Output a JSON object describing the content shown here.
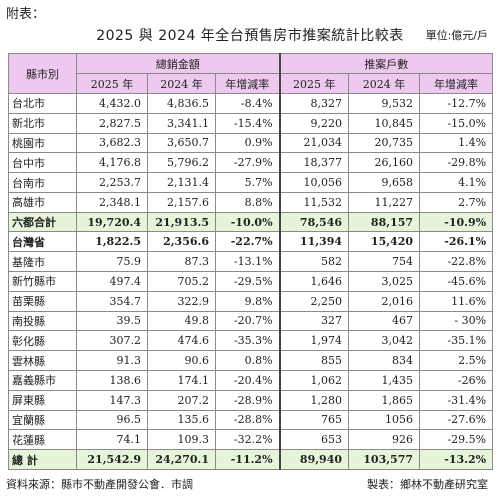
{
  "top_label": "附表：",
  "title": "2025 與 2024 年全台預售房市推案統計比較表",
  "unit": "單位:億元/戶",
  "headers": {
    "city": "縣市別",
    "sales_group": "總銷金額",
    "units_group": "推案戶數",
    "y2025": "2025 年",
    "y2024": "2024 年",
    "yoy": "年增減率"
  },
  "rows": [
    {
      "city": "台北市",
      "s25": "4,432.0",
      "s24": "4,836.5",
      "sy": "-8.4%",
      "u25": "8,327",
      "u24": "9,532",
      "uy": "-12.7%"
    },
    {
      "city": "新北市",
      "s25": "2,827.5",
      "s24": "3,341.1",
      "sy": "-15.4%",
      "u25": "9,220",
      "u24": "10,845",
      "uy": "-15.0%"
    },
    {
      "city": "桃園市",
      "s25": "3,682.3",
      "s24": "3,650.7",
      "sy": "0.9%",
      "u25": "21,034",
      "u24": "20,735",
      "uy": "1.4%"
    },
    {
      "city": "台中市",
      "s25": "4,176.8",
      "s24": "5,796.2",
      "sy": "-27.9%",
      "u25": "18,377",
      "u24": "26,160",
      "uy": "-29.8%"
    },
    {
      "city": "台南市",
      "s25": "2,253.7",
      "s24": "2,131.4",
      "sy": "5.7%",
      "u25": "10,056",
      "u24": "9,658",
      "uy": "4.1%"
    },
    {
      "city": "高雄市",
      "s25": "2,348.1",
      "s24": "2,157.6",
      "sy": "8.8%",
      "u25": "11,532",
      "u24": "11,227",
      "uy": "2.7%"
    },
    {
      "city": "六都合計",
      "s25": "19,720.4",
      "s24": "21,913.5",
      "sy": "-10.0%",
      "u25": "78,546",
      "u24": "88,157",
      "uy": "-10.9%",
      "kind": "hl"
    },
    {
      "city": "台灣省",
      "s25": "1,822.5",
      "s24": "2,356.6",
      "sy": "-22.7%",
      "u25": "11,394",
      "u24": "15,420",
      "uy": "-26.1%",
      "kind": "prov"
    },
    {
      "city": "基隆市",
      "s25": "75.9",
      "s24": "87.3",
      "sy": "-13.1%",
      "u25": "582",
      "u24": "754",
      "uy": "-22.8%"
    },
    {
      "city": "新竹縣市",
      "s25": "497.4",
      "s24": "705.2",
      "sy": "-29.5%",
      "u25": "1,646",
      "u24": "3,025",
      "uy": "-45.6%"
    },
    {
      "city": "苗栗縣",
      "s25": "354.7",
      "s24": "322.9",
      "sy": "9.8%",
      "u25": "2,250",
      "u24": "2,016",
      "uy": "11.6%"
    },
    {
      "city": "南投縣",
      "s25": "39.5",
      "s24": "49.8",
      "sy": "-20.7%",
      "u25": "327",
      "u24": "467",
      "uy": "- 30%"
    },
    {
      "city": "彰化縣",
      "s25": "307.2",
      "s24": "474.6",
      "sy": "-35.3%",
      "u25": "1,974",
      "u24": "3,042",
      "uy": "-35.1%"
    },
    {
      "city": "雲林縣",
      "s25": "91.3",
      "s24": "90.6",
      "sy": "0.8%",
      "u25": "855",
      "u24": "834",
      "uy": "2.5%"
    },
    {
      "city": "嘉義縣市",
      "s25": "138.6",
      "s24": "174.1",
      "sy": "-20.4%",
      "u25": "1,062",
      "u24": "1,435",
      "uy": "-26%"
    },
    {
      "city": "屏東縣",
      "s25": "147.3",
      "s24": "207.2",
      "sy": "-28.9%",
      "u25": "1,280",
      "u24": "1,865",
      "uy": "-31.4%"
    },
    {
      "city": "宜蘭縣",
      "s25": "96.5",
      "s24": "135.6",
      "sy": "-28.8%",
      "u25": "765",
      "u24": "1056",
      "uy": "-27.6%"
    },
    {
      "city": "花蓮縣",
      "s25": "74.1",
      "s24": "109.3",
      "sy": "-32.2%",
      "u25": "653",
      "u24": "926",
      "uy": "-29.5%"
    },
    {
      "city": "總 計",
      "s25": "21,542.9",
      "s24": "24,270.1",
      "sy": "-11.2%",
      "u25": "89,940",
      "u24": "103,577",
      "uy": "-13.2%",
      "kind": "hl"
    }
  ],
  "footer_left": "資料來源：縣市不動產開發公會．市調",
  "footer_right": "製表：鄉林不動產研究室"
}
